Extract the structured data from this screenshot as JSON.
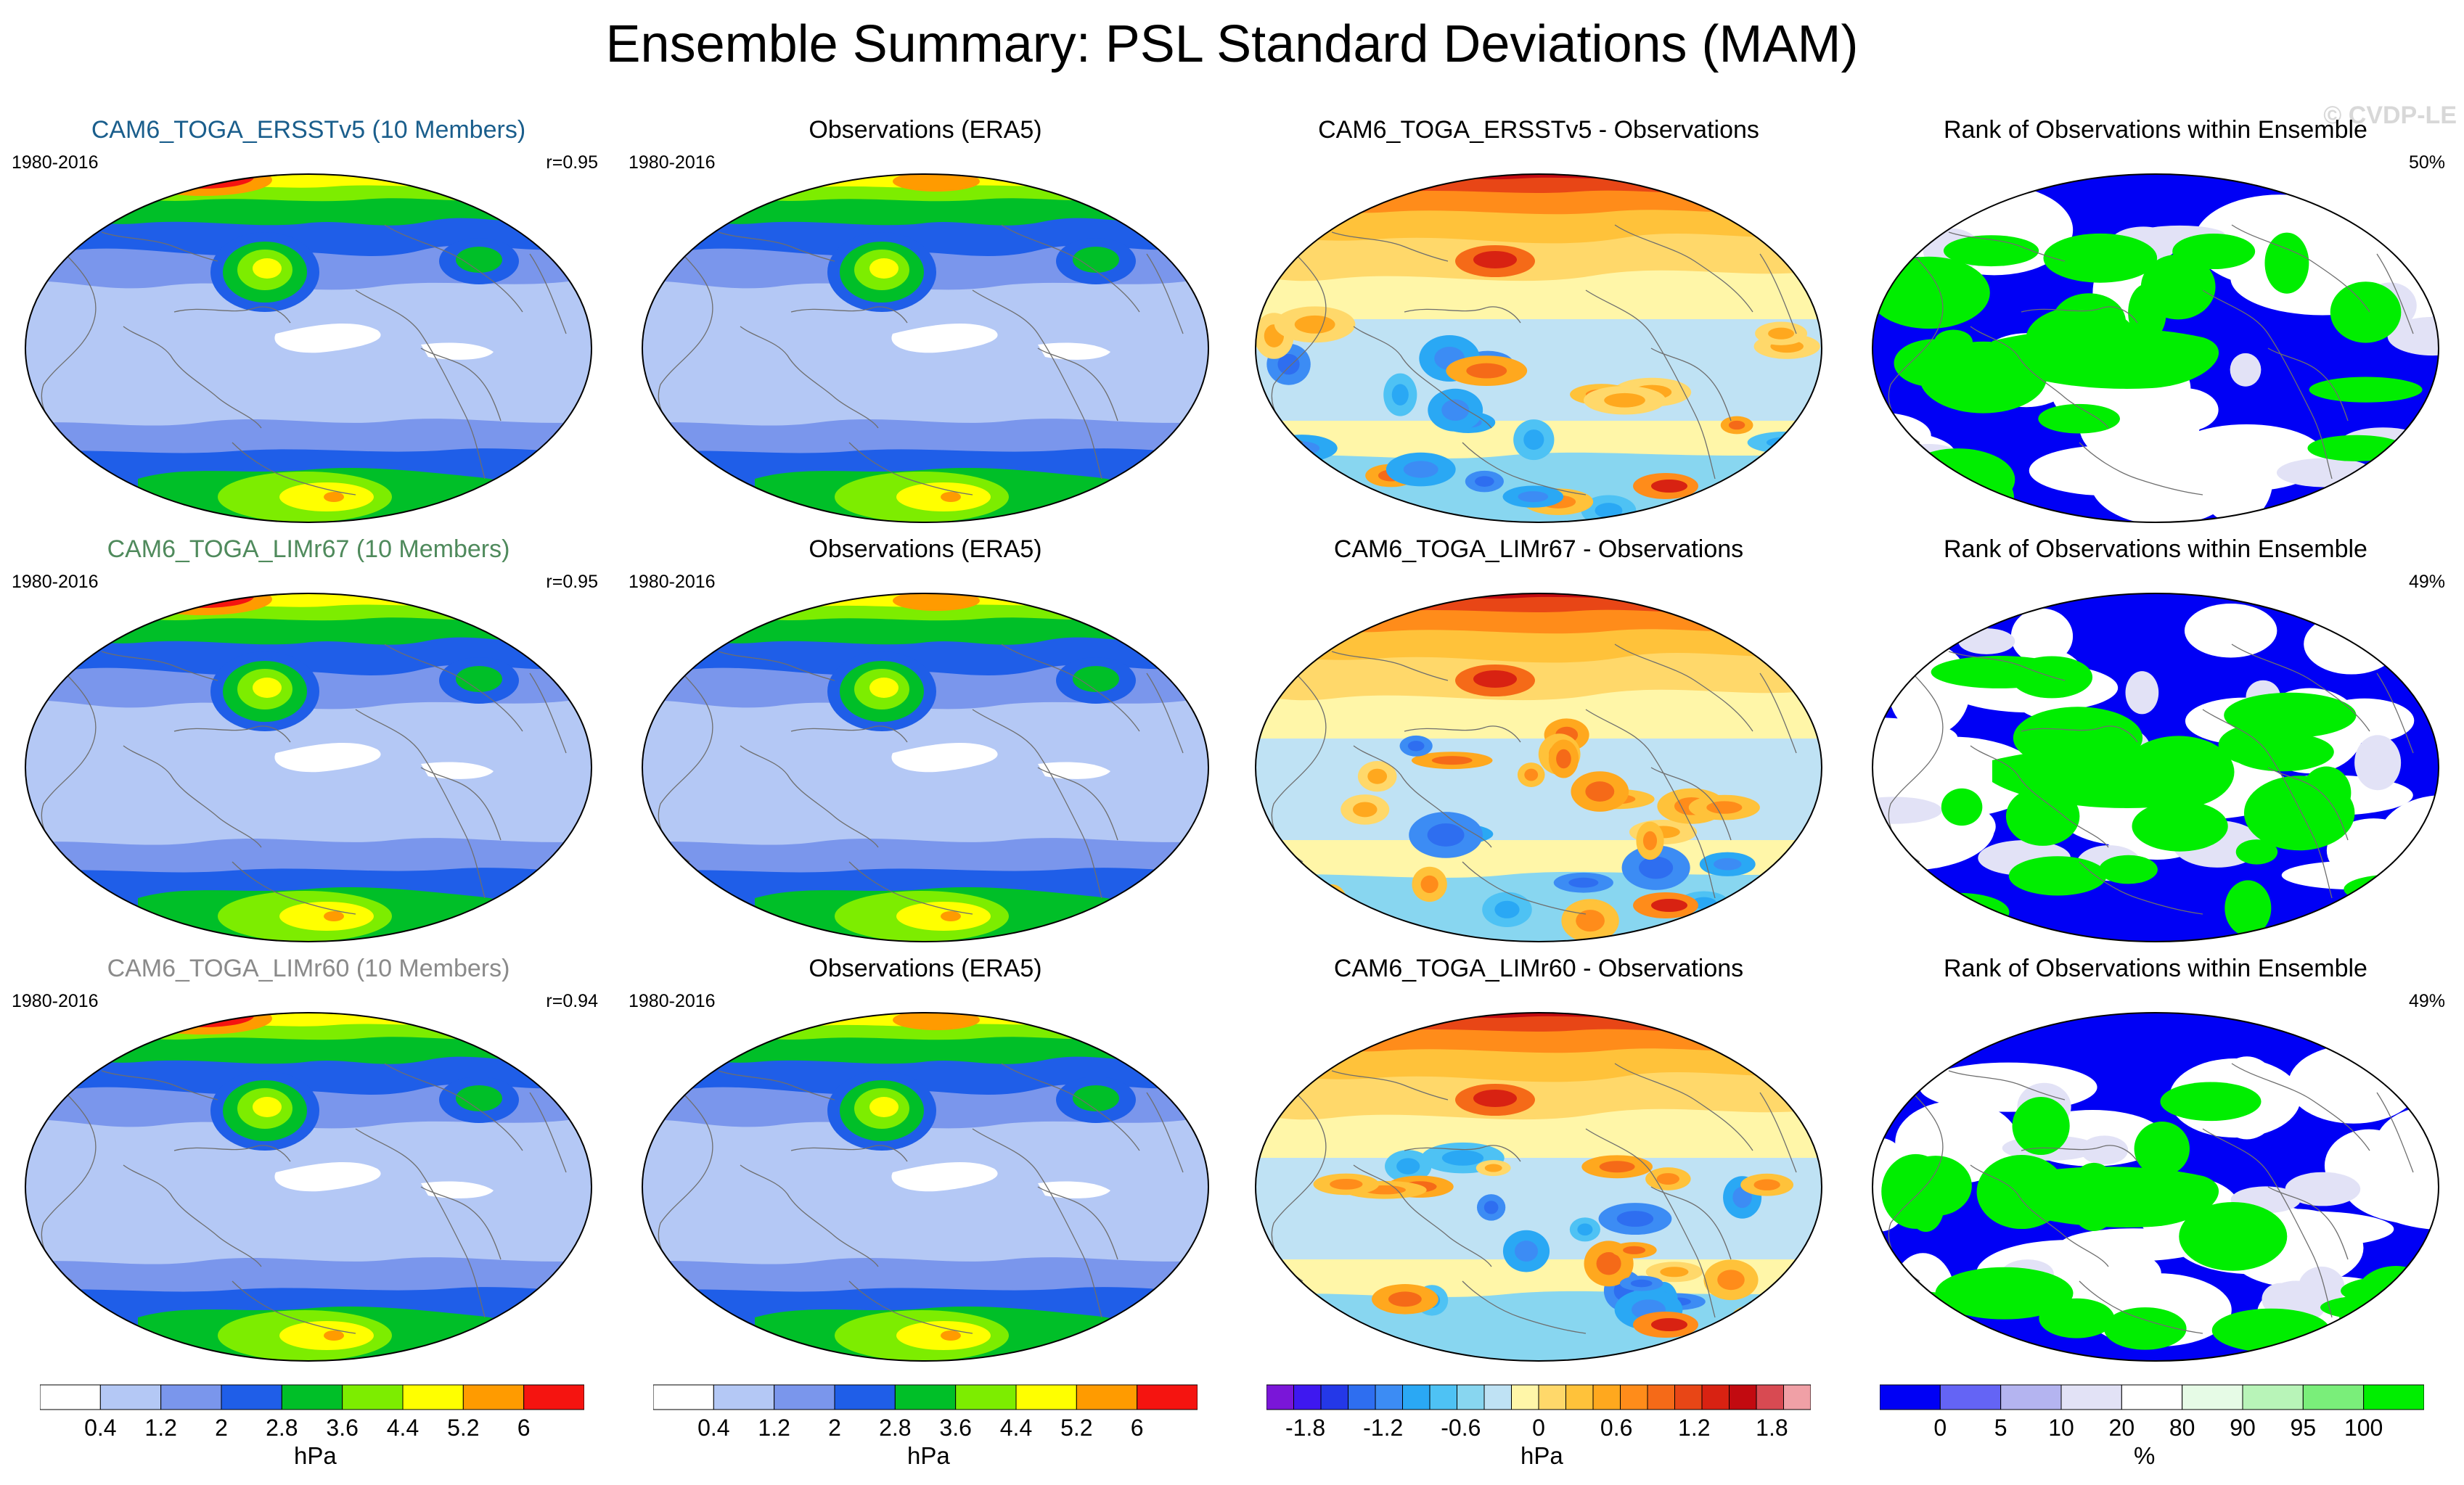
{
  "title": "Ensemble Summary: PSL Standard Deviations (MAM)",
  "watermark": "© CVDP-LE",
  "columns": [
    "model",
    "obs",
    "diff",
    "rank"
  ],
  "rows": [
    {
      "model_title": "CAM6_TOGA_ERSSTv5 (10 Members)",
      "model_title_color": "#1a5e8c",
      "period": "1980-2016",
      "correlation": "r=0.95",
      "obs_title": "Observations (ERA5)",
      "obs_period": "1980-2016",
      "diff_title": "CAM6_TOGA_ERSSTv5 - Observations",
      "rank_title": "Rank of Observations within Ensemble",
      "rank_percent": "50%"
    },
    {
      "model_title": "CAM6_TOGA_LIMr67 (10 Members)",
      "model_title_color": "#4f8a5c",
      "period": "1980-2016",
      "correlation": "r=0.95",
      "obs_title": "Observations (ERA5)",
      "obs_period": "1980-2016",
      "diff_title": "CAM6_TOGA_LIMr67 - Observations",
      "rank_title": "Rank of Observations within Ensemble",
      "rank_percent": "49%"
    },
    {
      "model_title": "CAM6_TOGA_LIMr60 (10 Members)",
      "model_title_color": "#8a8a8a",
      "period": "1980-2016",
      "correlation": "r=0.94",
      "obs_title": "Observations (ERA5)",
      "obs_period": "1980-2016",
      "diff_title": "CAM6_TOGA_LIMr60 - Observations",
      "rank_title": "Rank of Observations within Ensemble",
      "rank_percent": "49%"
    }
  ],
  "colorbars": [
    {
      "unit": "hPa",
      "tick_labels": [
        "0.4",
        "1.2",
        "2",
        "2.8",
        "3.6",
        "4.4",
        "5.2",
        "6"
      ],
      "colors": [
        "#ffffff",
        "#b4c8f5",
        "#7a96ec",
        "#1f5ee8",
        "#00bf28",
        "#7ded00",
        "#ffff00",
        "#ff9b00",
        "#f51410"
      ]
    },
    {
      "unit": "hPa",
      "tick_labels": [
        "0.4",
        "1.2",
        "2",
        "2.8",
        "3.6",
        "4.4",
        "5.2",
        "6"
      ],
      "colors": [
        "#ffffff",
        "#b4c8f5",
        "#7a96ec",
        "#1f5ee8",
        "#00bf28",
        "#7ded00",
        "#ffff00",
        "#ff9b00",
        "#f51410"
      ]
    },
    {
      "unit": "hPa",
      "tick_labels": [
        "-1.8",
        "-1.2",
        "-0.6",
        "0",
        "0.6",
        "1.2",
        "1.8"
      ],
      "colors": [
        "#7a16d8",
        "#3e18f0",
        "#2438e8",
        "#2e6ef0",
        "#3c8cf4",
        "#2aa8f4",
        "#4ec2f4",
        "#88d6f0",
        "#bfe2f4",
        "#fff6a8",
        "#ffd86a",
        "#ffc23a",
        "#ffa81e",
        "#ff8c1a",
        "#f56a18",
        "#e84616",
        "#d82212",
        "#c20a10",
        "#d84a52",
        "#f0a0a6"
      ]
    },
    {
      "unit": "%",
      "tick_labels": [
        "0",
        "5",
        "10",
        "20",
        "80",
        "90",
        "95",
        "100"
      ],
      "colors": [
        "#0000f5",
        "#6464f5",
        "#b4b4f0",
        "#e2e2f6",
        "#ffffff",
        "#e6fbe6",
        "#b8f4b8",
        "#7aee7a",
        "#00ee00"
      ]
    }
  ],
  "chart_data": {
    "type": "heatmap",
    "title": "Ensemble Summary: PSL Standard Deviations (MAM)",
    "variable": "PSL standard deviation",
    "season": "MAM",
    "period": "1980-2016",
    "units": {
      "std_panels": "hPa",
      "difference_panels": "hPa",
      "rank_panels": "%"
    },
    "std_contour_levels": [
      0.4,
      0.8,
      1.2,
      1.6,
      2,
      2.4,
      2.8,
      3.2,
      3.6,
      4,
      4.4,
      4.8,
      5.2,
      5.6,
      6
    ],
    "diff_contour_levels": [
      -1.8,
      -1.2,
      -0.6,
      0,
      0.6,
      1.2,
      1.8
    ],
    "rank_levels": [
      0,
      5,
      10,
      20,
      80,
      90,
      95,
      100
    ],
    "pattern_correlations": [
      {
        "model": "CAM6_TOGA_ERSSTv5",
        "members": 10,
        "r": 0.95
      },
      {
        "model": "CAM6_TOGA_LIMr67",
        "members": 10,
        "r": 0.95
      },
      {
        "model": "CAM6_TOGA_LIMr60",
        "members": 10,
        "r": 0.94
      }
    ],
    "rank_summary_percent": [
      {
        "model": "CAM6_TOGA_ERSSTv5",
        "value": 50
      },
      {
        "model": "CAM6_TOGA_LIMr67",
        "value": 49
      },
      {
        "model": "CAM6_TOGA_LIMr60",
        "value": 49
      }
    ]
  }
}
